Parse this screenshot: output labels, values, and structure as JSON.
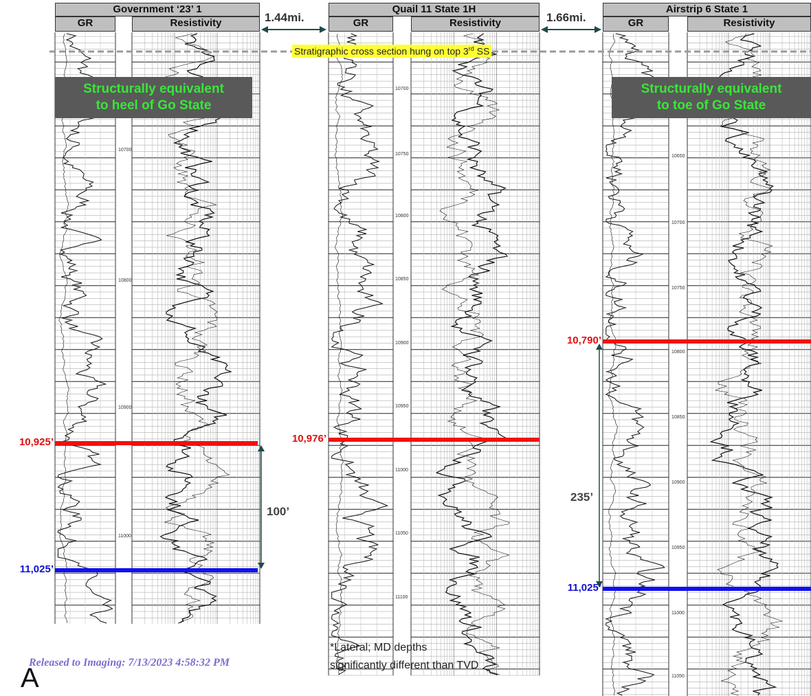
{
  "wells": [
    {
      "name": "Government ‘23’ 1",
      "tracks": [
        "GR",
        "Resistivity"
      ],
      "depth_labels": [
        10700,
        10800,
        10900,
        11000
      ],
      "annotation": [
        "Structurally equivalent",
        "to heel of Go State"
      ],
      "markers": [
        "10,925’",
        "11,025’"
      ],
      "interval": "100’"
    },
    {
      "name": "Quail 11 State 1H",
      "tracks": [
        "GR",
        "Resistivity"
      ],
      "depth_labels": [
        10700,
        10750,
        10800,
        10850,
        10900,
        10950,
        11000,
        11050,
        11100
      ],
      "markers": [
        "10,976’"
      ]
    },
    {
      "name": "Airstrip 6 State 1",
      "tracks": [
        "GR",
        "Resistivity"
      ],
      "depth_labels": [
        10650,
        10700,
        10750,
        10800,
        10850,
        10900,
        10950,
        11000,
        11050
      ],
      "annotation": [
        "Structurally equivalent",
        "to toe of Go State"
      ],
      "markers": [
        "10,790’",
        "11,025’"
      ],
      "interval": "235’"
    }
  ],
  "distances": [
    "1.44mi.",
    "1.66mi."
  ],
  "banner": {
    "text": "Stratigraphic cross section hung on top 3",
    "sup": "rd",
    "tail": " SS"
  },
  "footnote": [
    "*Lateral; MD depths",
    "significantly different than TVD"
  ],
  "released": "Released to Imaging: 7/13/2023 4:58:32 PM",
  "letter": "A"
}
